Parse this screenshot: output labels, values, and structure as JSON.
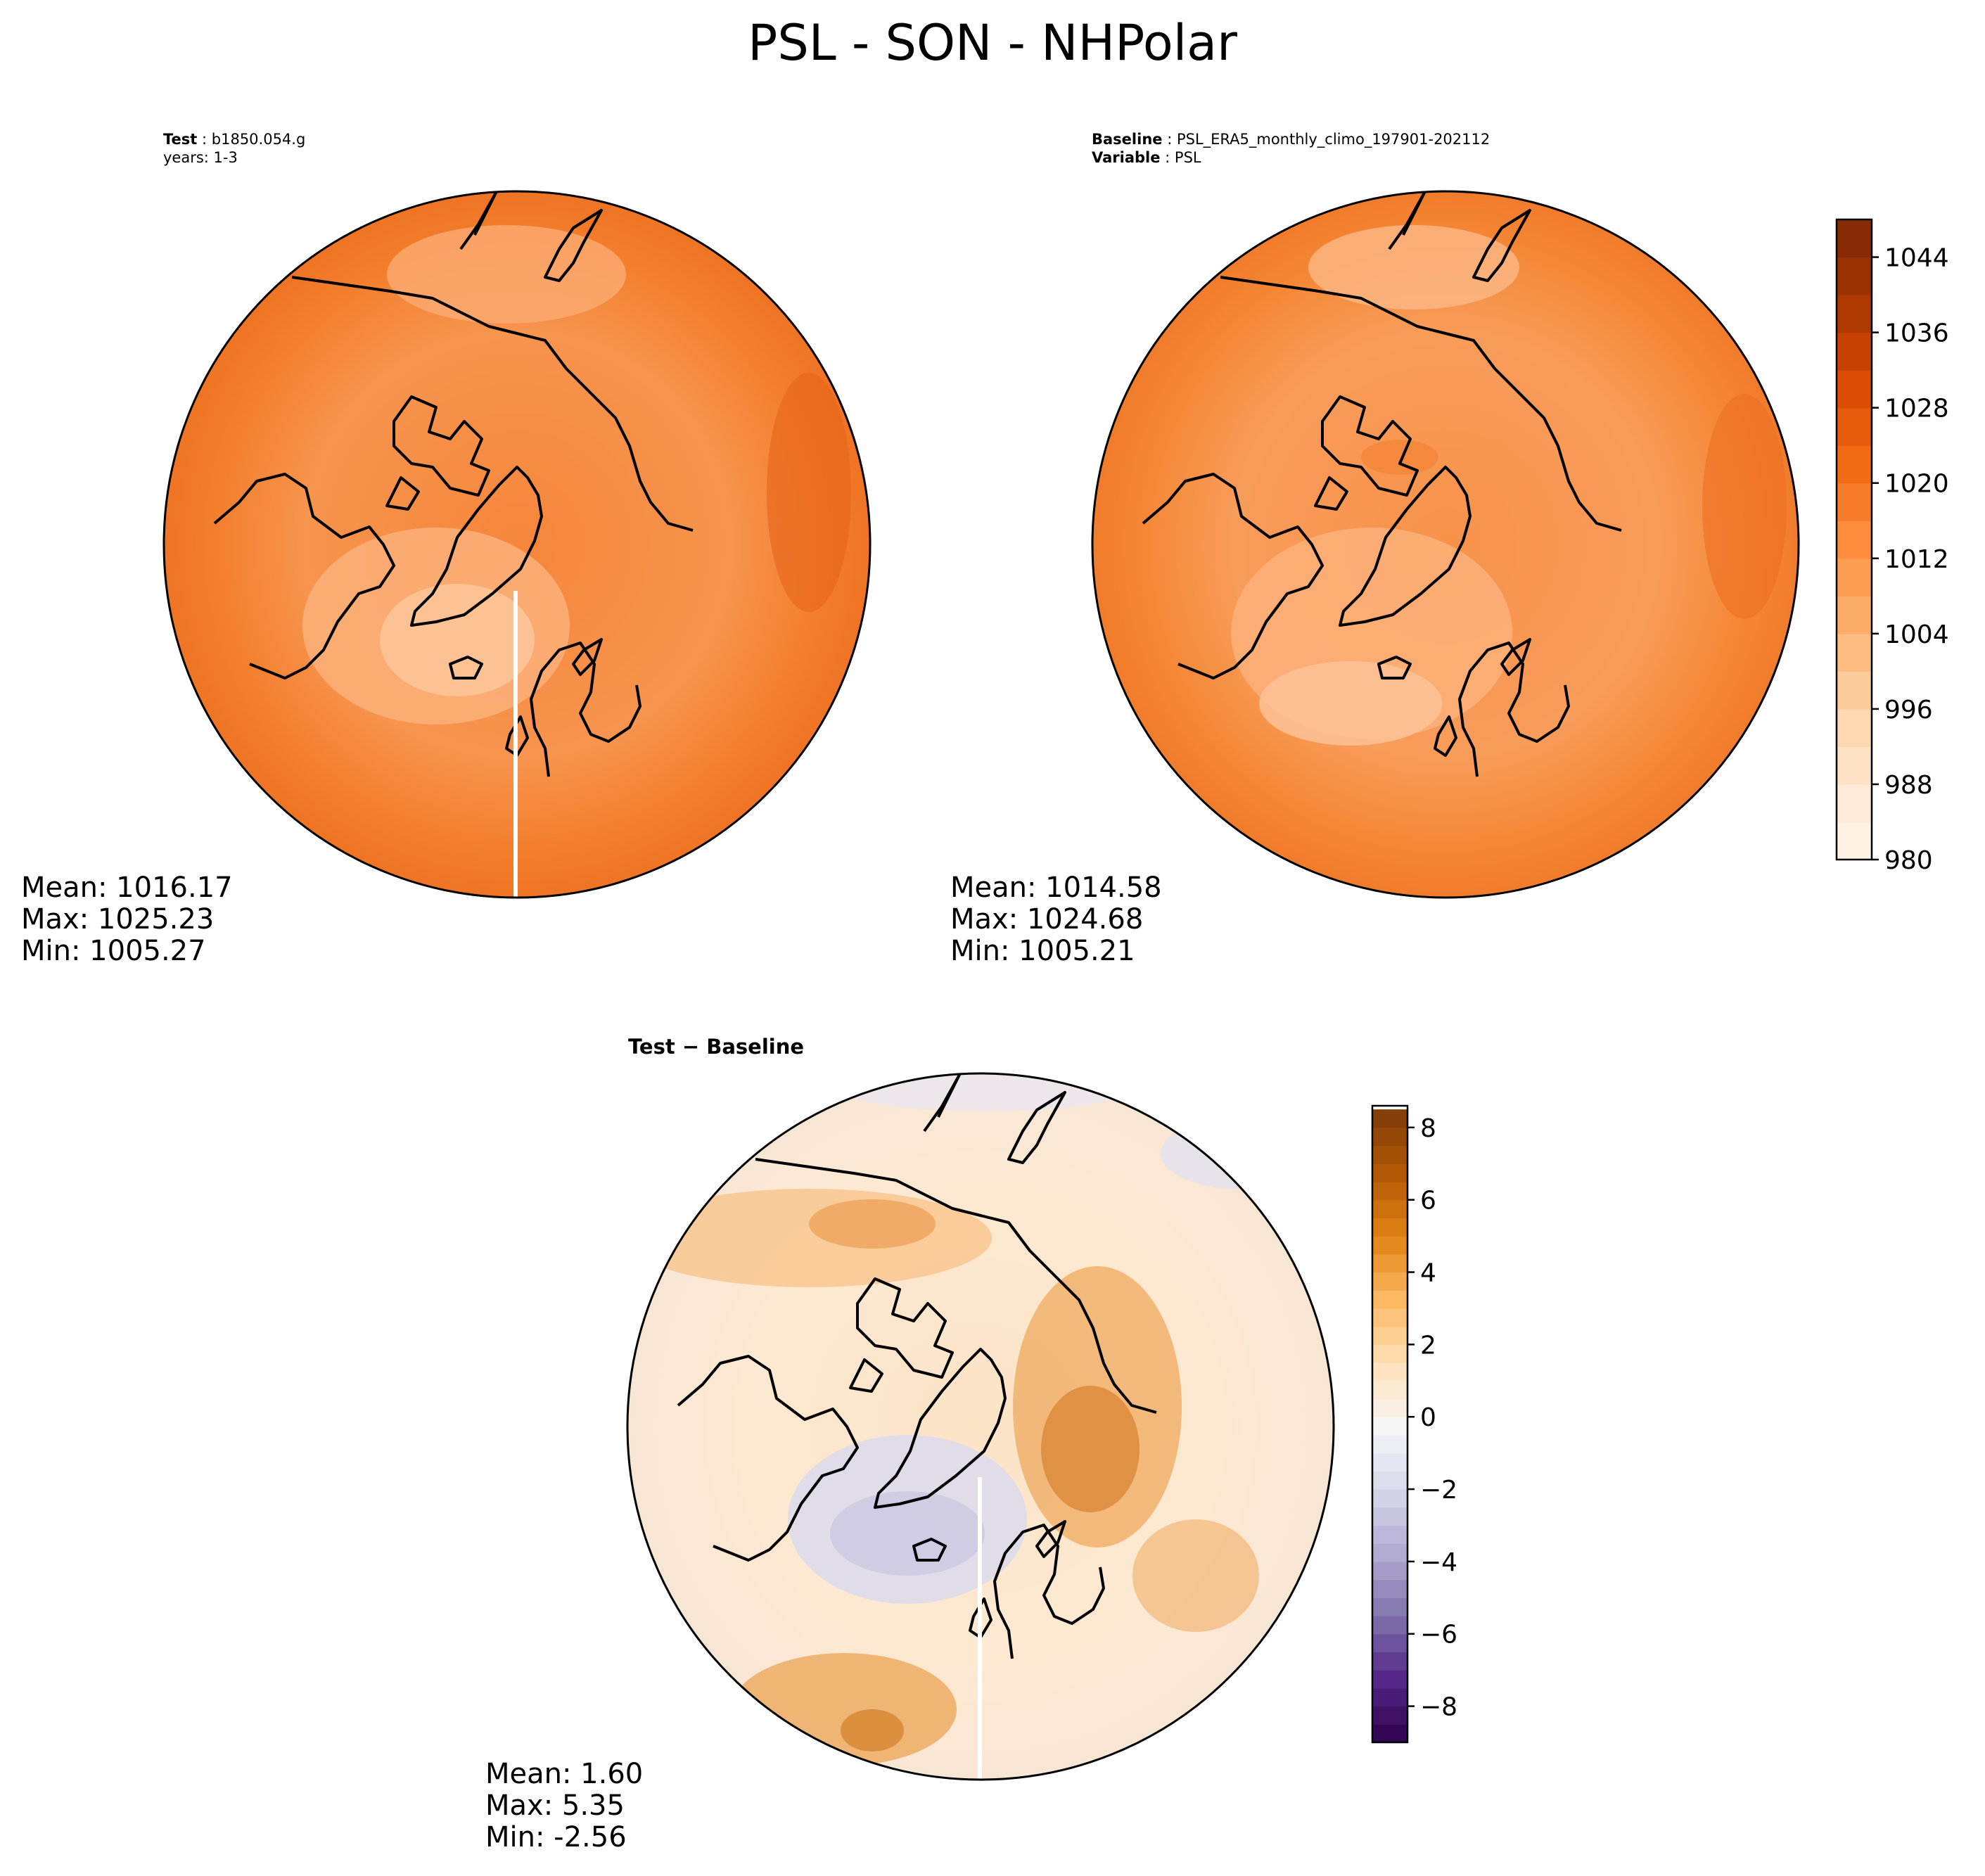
{
  "figure": {
    "title": "PSL - SON - NHPolar"
  },
  "panels": [
    {
      "id": "test",
      "title_lines": [
        {
          "label": "Test",
          "value": "b1850.054.g"
        },
        {
          "label": "",
          "value": "years: 1-3"
        }
      ],
      "stats": {
        "mean_label": "Mean: 1016.17",
        "max_label": "Max: 1025.23",
        "min_label": "Min: 1005.27"
      }
    },
    {
      "id": "baseline",
      "title_lines": [
        {
          "label": "Baseline",
          "value": "PSL_ERA5_monthly_climo_197901-202112"
        },
        {
          "label": "Variable",
          "value": "PSL"
        }
      ],
      "stats": {
        "mean_label": "Mean: 1014.58",
        "max_label": "Max: 1024.68",
        "min_label": "Min: 1005.21"
      }
    },
    {
      "id": "difference",
      "title": "Test − Baseline",
      "stats": {
        "mean_label": "Mean:  1.60",
        "max_label": "Max:  5.35",
        "min_label": "Min: -2.56"
      }
    }
  ],
  "chart_data": [
    {
      "type": "heatmap",
      "panel": "Test",
      "projection": "north polar stereographic",
      "variable": "PSL",
      "season": "SON",
      "case": "b1850.054.g",
      "years": "1-3",
      "stats": {
        "mean": 1016.17,
        "max": 1025.23,
        "min": 1005.27
      }
    },
    {
      "type": "heatmap",
      "panel": "Baseline",
      "projection": "north polar stereographic",
      "variable": "PSL",
      "season": "SON",
      "case": "PSL_ERA5_monthly_climo_197901-202112",
      "stats": {
        "mean": 1014.58,
        "max": 1024.68,
        "min": 1005.21
      },
      "colorbar": {
        "colormap": "Oranges",
        "range": [
          980,
          1048
        ],
        "levels_step": 4,
        "ticks": [
          980,
          988,
          996,
          1004,
          1012,
          1020,
          1028,
          1036,
          1044
        ],
        "tick_labels": [
          "980",
          "988",
          "996",
          "1004",
          "1012",
          "1020",
          "1028",
          "1036",
          "1044"
        ]
      }
    },
    {
      "type": "heatmap",
      "panel": "Test - Baseline",
      "projection": "north polar stereographic",
      "variable": "PSL",
      "season": "SON",
      "stats": {
        "mean": 1.6,
        "max": 5.35,
        "min": -2.56
      },
      "colorbar": {
        "colormap": "PuOr_r",
        "range": [
          -9,
          8.6
        ],
        "levels_step": 0.5,
        "ticks": [
          -8,
          -6,
          -4,
          -2,
          0,
          2,
          4,
          6,
          8
        ],
        "tick_labels": [
          "−8",
          "−6",
          "−4",
          "−2",
          "0",
          "2",
          "4",
          "6",
          "8"
        ]
      }
    }
  ]
}
